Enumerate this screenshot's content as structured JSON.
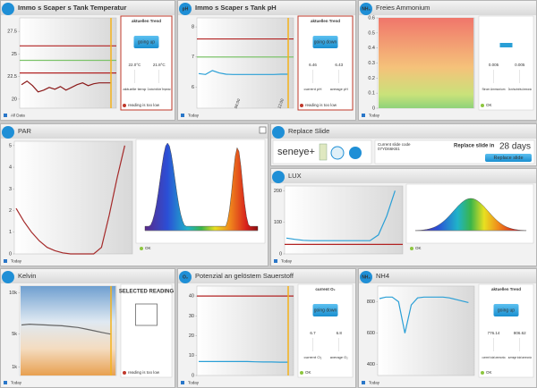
{
  "panels": [
    {
      "title": "Immo s Scaper s Tank Temperatur",
      "footer": "All Data",
      "chart": {
        "ylim": [
          19,
          29
        ],
        "yticks": [
          27.5,
          25,
          22.5,
          20
        ],
        "now_line": true,
        "hlines": [
          {
            "value": 25.9,
            "color": "#b22222"
          },
          {
            "value": 24.3,
            "color": "#7cc36a"
          },
          {
            "value": 22.9,
            "color": "#b22222"
          }
        ],
        "series": {
          "color": "#8b1a1a",
          "values": [
            21.6,
            22.0,
            21.5,
            20.8,
            21.0,
            21.3,
            21.1,
            21.4,
            21.0,
            21.3,
            21.6,
            21.8,
            21.5,
            21.7,
            21.8,
            21.8,
            21.8
          ]
        }
      },
      "trend": {
        "heading": "aktuellen Trend",
        "button": "going up",
        "warn": true,
        "readings": [
          {
            "value": "22.0°C",
            "label": "aktuelle temp"
          },
          {
            "value": "21.8°C",
            "label": "Durchschnittliche Temperatur"
          }
        ],
        "status": "reading is too low",
        "status_color": "#c0392b"
      }
    },
    {
      "title": "Immo s Scaper s Tank pH",
      "icon": "pH",
      "footer": "Today",
      "chart": {
        "ylim": [
          5.3,
          8.3
        ],
        "yticks": [
          8,
          7,
          6
        ],
        "xlabels": [
          "06:00",
          "12:00"
        ],
        "now_line": true,
        "hlines": [
          {
            "value": 7.6,
            "color": "#b22222"
          },
          {
            "value": 7.0,
            "color": "#7cc36a"
          }
        ],
        "series": {
          "color": "#2a9fd6",
          "values": [
            6.45,
            6.42,
            6.55,
            6.47,
            6.43,
            6.42,
            6.42,
            6.42,
            6.42,
            6.42,
            6.42,
            6.42,
            6.43,
            6.43
          ]
        }
      },
      "trend": {
        "heading": "aktuellen Trend",
        "button": "going down",
        "warn": true,
        "readings": [
          {
            "value": "6.46",
            "label": "current pH"
          },
          {
            "value": "6.43",
            "label": "average pH"
          }
        ],
        "status": "reading is too low",
        "status_color": "#c0392b"
      }
    },
    {
      "title": "Freies Ammonium",
      "icon": "NH₃",
      "footer": "Today",
      "chart": {
        "ylim": [
          0,
          0.6
        ],
        "yticks": [
          0.6,
          0.5,
          0.4,
          0.3,
          0.2,
          0.1,
          0
        ],
        "fill": "ammonia"
      },
      "trend": {
        "button_small": true,
        "readings": [
          {
            "value": "0.005",
            "label": "Strom Ammonium"
          },
          {
            "value": "0.005",
            "label": "Durchschnitts Ammonia"
          }
        ],
        "status": "OK",
        "status_color": "#8dc63f"
      }
    },
    {
      "title": "PAR",
      "footer": "Today",
      "closable": true,
      "chart": {
        "ylim": [
          0,
          5.2
        ],
        "yticks": [
          5,
          4,
          3,
          2,
          1,
          0
        ],
        "now_line": false,
        "series": {
          "color": "#a52a2a",
          "values": [
            2.1,
            1.5,
            1.0,
            0.6,
            0.3,
            0.15,
            0.05,
            0,
            0,
            0,
            0,
            0.3,
            1.8,
            3.5,
            5.0
          ]
        }
      },
      "spectrum": "par",
      "status": "OK",
      "status_color": "#8dc63f"
    },
    {
      "title": "Replace Slide",
      "slide": {
        "logo": "seneye+",
        "code_label": "Current slide code",
        "code": "07YD66KB1",
        "replace_label": "Replace slide in",
        "days": "28 days",
        "button": "Replace slide"
      }
    },
    {
      "title": "LUX",
      "footer": "Today",
      "chart": {
        "ylim": [
          0,
          215
        ],
        "yticks": [
          200,
          100,
          0
        ],
        "now_line": false,
        "hlines": [
          {
            "value": 30,
            "color": "#b22222"
          }
        ],
        "series": {
          "color": "#2a9fd6",
          "values": [
            50,
            46,
            43,
            42,
            42,
            42,
            42,
            42,
            42,
            42,
            42,
            60,
            120,
            200
          ]
        }
      },
      "spectrum": "lux",
      "status": "OK",
      "status_color": "#8dc63f"
    },
    {
      "title": "Kelvin",
      "footer": "Today",
      "chart": {
        "ylim": [
          0,
          10800
        ],
        "yticks": [
          {
            "value": 10000,
            "label": "10k"
          },
          {
            "value": 5000,
            "label": "5k"
          },
          {
            "value": 1000,
            "label": "1k"
          }
        ],
        "fill": "sky",
        "now_line": true,
        "series": {
          "color": "#666666",
          "values": [
            6100,
            6200,
            6150,
            6100,
            6050,
            6000,
            5900,
            5800,
            5600,
            5400,
            5200,
            5000
          ]
        }
      },
      "trend": {
        "selected": "SELECTED READING",
        "warn": false,
        "status": "reading is too low",
        "status_color": "#c0392b"
      }
    },
    {
      "title": "Potenzial an gelöstem Sauerstoff",
      "icon": "O₂",
      "footer": "Today",
      "chart": {
        "ylim": [
          0,
          45
        ],
        "yticks": [
          40,
          30,
          20,
          10,
          0
        ],
        "now_line": true,
        "hlines": [
          {
            "value": 40,
            "color": "#b22222"
          }
        ],
        "series": {
          "color": "#2a9fd6",
          "values": [
            7.0,
            7.0,
            7.0,
            7.0,
            7.0,
            7.0,
            7.0,
            6.9,
            6.8,
            6.8,
            6.7,
            6.7
          ]
        }
      },
      "trend": {
        "heading": "current O₂",
        "button": "going down",
        "warn": false,
        "readings": [
          {
            "value": "6.7",
            "label": "current O₂"
          },
          {
            "value": "6.8",
            "label": "average O₂"
          }
        ],
        "status": "OK",
        "status_color": "#8dc63f"
      }
    },
    {
      "title": "NH4",
      "icon": "NH₄",
      "footer": "Today",
      "chart": {
        "ylim": [
          330,
          900
        ],
        "yticks": [
          800,
          600,
          400
        ],
        "now_line": false,
        "series": {
          "color": "#2a9fd6",
          "values": [
            820,
            830,
            830,
            800,
            600,
            780,
            825,
            830,
            830,
            830,
            830,
            825,
            815,
            805,
            795
          ]
        }
      },
      "trend": {
        "heading": "aktuellen Trend",
        "button": "going up",
        "warn": false,
        "readings": [
          {
            "value": "776.14",
            "label": "current total ammonia"
          },
          {
            "value": "806.62",
            "label": "average total ammonia"
          }
        ],
        "status": "OK",
        "status_color": "#8dc63f"
      }
    }
  ]
}
